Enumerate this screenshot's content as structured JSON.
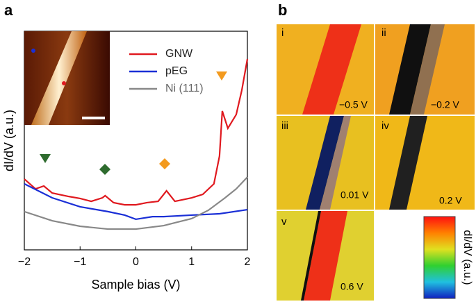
{
  "panel_a": {
    "label": "a"
  },
  "chart_data": {
    "type": "line",
    "xlabel": "Sample bias (V)",
    "ylabel": "dI/dV (a.u.)",
    "xlim": [
      -2,
      2
    ],
    "xticks": [
      {
        "value": -2,
        "label": "−2"
      },
      {
        "value": -1,
        "label": "−1"
      },
      0,
      1,
      2
    ],
    "ylim": [
      0,
      10
    ],
    "series": [
      {
        "name": "GNW",
        "color": "#e0191f",
        "x": [
          -2,
          -1.8,
          -1.65,
          -1.5,
          -1.2,
          -1,
          -0.8,
          -0.6,
          -0.55,
          -0.4,
          -0.2,
          0,
          0.2,
          0.4,
          0.55,
          0.7,
          1,
          1.2,
          1.4,
          1.5,
          1.55,
          1.65,
          1.8,
          1.9,
          2
        ],
        "values": [
          3.24,
          2.79,
          2.92,
          2.6,
          2.44,
          2.35,
          2.22,
          2.38,
          2.48,
          2.16,
          2.06,
          2.06,
          2.16,
          2.22,
          2.7,
          2.22,
          2.38,
          2.54,
          3.02,
          4.29,
          6.35,
          5.56,
          6.19,
          7.3,
          8.73
        ]
      },
      {
        "name": "pEG",
        "color": "#1a2fd6",
        "x": [
          -2,
          -1.5,
          -1,
          -0.5,
          -0.2,
          0,
          0.3,
          0.5,
          1,
          1.5,
          2
        ],
        "values": [
          3.02,
          2.38,
          1.97,
          1.75,
          1.59,
          1.4,
          1.52,
          1.52,
          1.59,
          1.65,
          1.84
        ]
      },
      {
        "name": "Ni (111)",
        "color": "#888888",
        "x": [
          -2,
          -1.5,
          -1,
          -0.5,
          0,
          0.5,
          1,
          1.3,
          1.6,
          1.8,
          2
        ],
        "values": [
          1.75,
          1.33,
          1.08,
          0.95,
          0.95,
          1.11,
          1.43,
          1.81,
          2.38,
          2.79,
          3.33
        ]
      }
    ]
  },
  "panel_b": {
    "label": "b",
    "images": [
      {
        "label": "i",
        "bias": "−0.5 V"
      },
      {
        "label": "ii",
        "bias": "−0.2 V"
      },
      {
        "label": "iii",
        "bias": "0.01 V"
      },
      {
        "label": "iv",
        "bias": "0.2 V"
      },
      {
        "label": "v",
        "bias": "0.6 V"
      }
    ],
    "colorbar_label": "dI/dV (a.u.)"
  }
}
